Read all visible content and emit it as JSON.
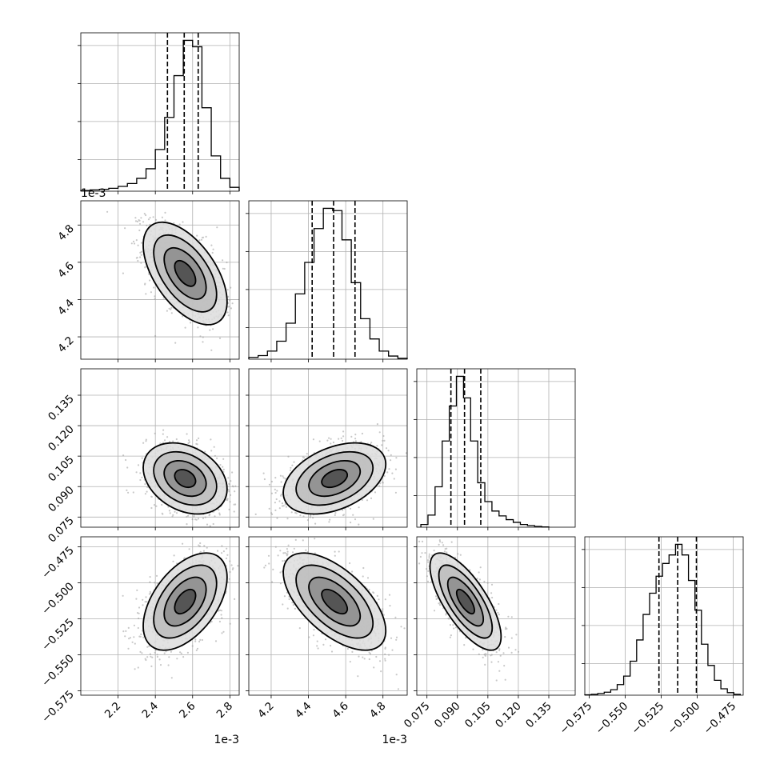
{
  "chart_data": {
    "type": "corner",
    "grid": true,
    "parameters": [
      {
        "range": [
          2.0,
          2.85
        ],
        "scale_label": "1e-3",
        "ticks": [
          2.2,
          2.4,
          2.6,
          2.8
        ],
        "tick_labels": [
          "2.2",
          "2.4",
          "2.6",
          "2.8"
        ],
        "mean": 2.56,
        "sd": 0.09,
        "corr_sign": 1,
        "quantiles": [
          2.465,
          2.555,
          2.63
        ],
        "hist_bins": [
          2.0,
          2.05,
          2.1,
          2.15,
          2.2,
          2.25,
          2.3,
          2.35,
          2.4,
          2.45,
          2.5,
          2.55,
          2.6,
          2.65,
          2.7,
          2.75,
          2.8,
          2.85
        ],
        "hist_counts": [
          2,
          4,
          6,
          9,
          15,
          24,
          40,
          70,
          130,
          230,
          360,
          470,
          450,
          260,
          110,
          40,
          12
        ]
      },
      {
        "range": [
          4.08,
          4.93
        ],
        "scale_label": "1e-3",
        "ticks": [
          4.2,
          4.4,
          4.6,
          4.8
        ],
        "tick_labels": [
          "4.2",
          "4.4",
          "4.6",
          "4.8"
        ],
        "mean": 4.54,
        "sd": 0.11,
        "corr_sign": 1,
        "quantiles": [
          4.42,
          4.535,
          4.65
        ],
        "hist_bins": [
          4.08,
          4.13,
          4.18,
          4.23,
          4.28,
          4.33,
          4.38,
          4.43,
          4.48,
          4.53,
          4.58,
          4.63,
          4.68,
          4.73,
          4.78,
          4.83,
          4.88,
          4.93
        ],
        "hist_counts": [
          4,
          8,
          18,
          40,
          80,
          145,
          215,
          290,
          335,
          330,
          265,
          170,
          90,
          45,
          18,
          7,
          2
        ]
      },
      {
        "range": [
          0.07,
          0.148
        ],
        "scale_label": "",
        "ticks": [
          0.075,
          0.09,
          0.105,
          0.12,
          0.135
        ],
        "tick_labels": [
          "0.075",
          "0.090",
          "0.105",
          "0.120",
          "0.135"
        ],
        "mean": 0.094,
        "sd": 0.007,
        "corr_sign": -1,
        "quantiles": [
          0.0868,
          0.0935,
          0.1015
        ],
        "hist_bins": [
          0.072,
          0.0755,
          0.079,
          0.0825,
          0.086,
          0.0895,
          0.093,
          0.0965,
          0.1,
          0.1035,
          0.107,
          0.1105,
          0.114,
          0.1175,
          0.121,
          0.1245,
          0.128,
          0.1315,
          0.135
        ],
        "hist_counts": [
          10,
          45,
          150,
          320,
          450,
          560,
          480,
          320,
          165,
          95,
          60,
          42,
          28,
          18,
          10,
          6,
          3,
          1
        ]
      },
      {
        "range": [
          -0.578,
          -0.468
        ],
        "scale_label": "",
        "ticks": [
          -0.575,
          -0.55,
          -0.525,
          -0.5,
          -0.475
        ],
        "tick_labels": [
          "−0.575",
          "−0.550",
          "−0.525",
          "−0.500",
          "−0.475"
        ],
        "mean": -0.513,
        "sd": 0.0135,
        "corr_sign": 1,
        "quantiles": [
          -0.5265,
          -0.5135,
          -0.5005
        ],
        "hist_bins": [
          -0.578,
          -0.5735,
          -0.569,
          -0.5645,
          -0.56,
          -0.5555,
          -0.551,
          -0.5465,
          -0.542,
          -0.5375,
          -0.533,
          -0.5285,
          -0.524,
          -0.5195,
          -0.515,
          -0.5105,
          -0.506,
          -0.5015,
          -0.497,
          -0.4925,
          -0.488,
          -0.4835,
          -0.479,
          -0.4745,
          -0.47
        ],
        "hist_counts": [
          1,
          2,
          4,
          7,
          13,
          25,
          45,
          80,
          130,
          190,
          240,
          280,
          310,
          330,
          355,
          330,
          270,
          200,
          120,
          70,
          35,
          15,
          6,
          2
        ]
      }
    ],
    "pairs": [
      {
        "row": 1,
        "col": 0,
        "rho": -0.55
      },
      {
        "row": 2,
        "col": 0,
        "rho": -0.3
      },
      {
        "row": 2,
        "col": 1,
        "rho": 0.4
      },
      {
        "row": 3,
        "col": 0,
        "rho": 0.5
      },
      {
        "row": 3,
        "col": 1,
        "rho": -0.6
      },
      {
        "row": 3,
        "col": 2,
        "rho": -0.72
      }
    ],
    "contour_levels_sigma": [
      0.5,
      1.0,
      1.5,
      2.0
    ]
  }
}
